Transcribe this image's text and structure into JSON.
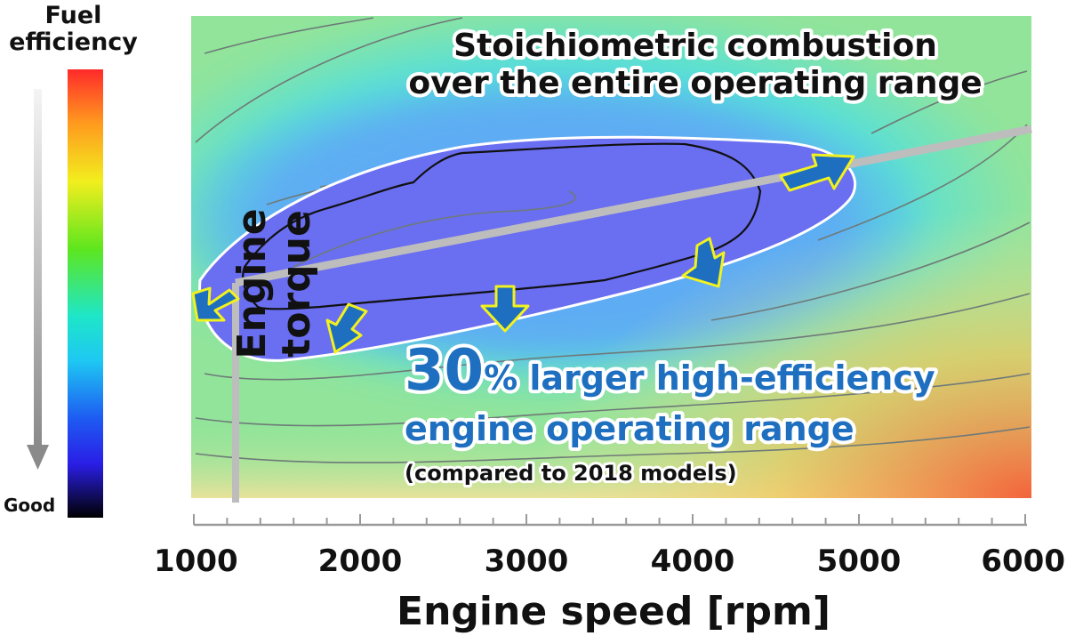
{
  "colors": {
    "efficient_region": "#6a6ef0",
    "surround_blue": "#5fb4f5",
    "cyan": "#49e0e6",
    "green": "#92e49a",
    "red": "#f2633c",
    "trend_line": "#bdbdbd",
    "arrow_fill": "#1e6fc0",
    "arrow_outline": "#f2f21e",
    "annotation_blue": "#1e6fc0"
  },
  "legend": {
    "title_line1": "Fuel",
    "title_line2": "efficiency",
    "bottom_label": "Good",
    "gradient_top_to_bottom": [
      "#ff2a2a",
      "#ff9a1e",
      "#f2ee1e",
      "#5ee61e",
      "#1ee6c8",
      "#1ec8f2",
      "#1e5af2",
      "#2a1ee6",
      "#000000"
    ]
  },
  "chart_data": {
    "type": "heatmap",
    "title_line1": "Stoichiometric combustion",
    "title_line2": "over the entire operating range",
    "xlabel": "Engine speed [rpm]",
    "ylabel": "Engine torque",
    "xlim": [
      1000,
      6000
    ],
    "x_ticks": [
      "1000",
      "2000",
      "3000",
      "4000",
      "5000",
      "6000"
    ],
    "x_tick_values": [
      1000,
      2000,
      3000,
      4000,
      5000,
      6000
    ],
    "x_minor_step": 200,
    "trend_line": [
      [
        1250,
        1.0
      ],
      [
        6000,
        7.7
      ]
    ],
    "annotation": {
      "big_number": "30",
      "percent": "%",
      "line1_rest": " larger high-efficiency",
      "line2": "engine operating range",
      "note": "(compared to 2018 models)"
    },
    "arrows": [
      "left-down",
      "down",
      "down",
      "down-right",
      "up-right"
    ]
  }
}
